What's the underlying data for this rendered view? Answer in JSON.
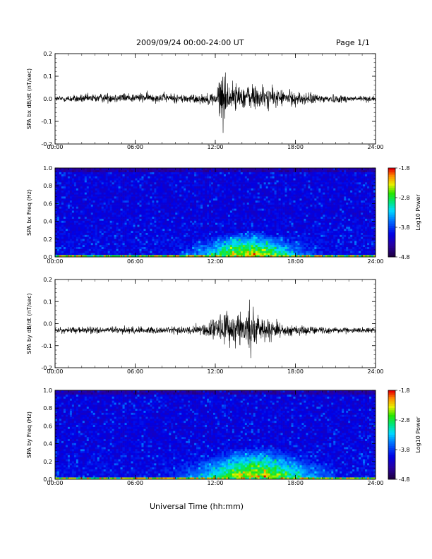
{
  "header": {
    "title": "2009/09/24  00:00-24:00 UT",
    "page": "Page 1/1"
  },
  "x_axis_label": "Universal Time (hh:mm)",
  "chart_data": [
    {
      "type": "line",
      "ylabel": "SPA bx dB/dt (nT/sec)",
      "xlim": [
        0,
        24
      ],
      "ylim": [
        -0.2,
        0.2
      ],
      "xticks": [
        "00:00",
        "06:00",
        "12:00",
        "18:00",
        "24:00"
      ],
      "yticks": [
        "0.2",
        "0.1",
        "0.0",
        "-0.1",
        "-0.2"
      ],
      "series": [
        {
          "x": [
            0,
            2,
            4,
            6,
            8,
            10,
            11,
            12,
            12.5,
            13,
            14,
            15,
            16,
            17,
            18,
            20,
            22,
            24
          ],
          "baseline": [
            0.0,
            0.0,
            0.005,
            0.005,
            0.005,
            0.0,
            0.0,
            0.0,
            0.005,
            0.01,
            0.01,
            0.005,
            0.005,
            0.005,
            0.0,
            0.0,
            0.0,
            0.0
          ],
          "amplitude": [
            0.012,
            0.018,
            0.02,
            0.02,
            0.02,
            0.02,
            0.02,
            0.03,
            0.13,
            0.06,
            0.05,
            0.06,
            0.045,
            0.035,
            0.03,
            0.02,
            0.015,
            0.012
          ]
        }
      ]
    },
    {
      "type": "heatmap",
      "ylabel": "SPA bx Freq (Hz)",
      "xlim": [
        0,
        24
      ],
      "ylim": [
        0.0,
        1.0
      ],
      "xticks": [
        "00:00",
        "06:00",
        "12:00",
        "18:00",
        "24:00"
      ],
      "yticks": [
        "1.0",
        "0.8",
        "0.6",
        "0.4",
        "0.2",
        "0.0"
      ],
      "colorbar": {
        "label": "Log10 Power",
        "range": [
          -4.8,
          -1.8
        ],
        "ticks": [
          "-1.8",
          "-2.8",
          "-3.8",
          "-4.8"
        ]
      },
      "features": [
        {
          "t": [
            9,
            20
          ],
          "peak_t": 14.5,
          "f_top": 0.3,
          "level": -2.9
        }
      ]
    },
    {
      "type": "line",
      "ylabel": "SPA by dB/dt (nT/sec)",
      "xlim": [
        0,
        24
      ],
      "ylim": [
        -0.2,
        0.2
      ],
      "xticks": [
        "00:00",
        "06:00",
        "12:00",
        "18:00",
        "24:00"
      ],
      "yticks": [
        "0.2",
        "0.1",
        "0.0",
        "-0.1",
        "-0.2"
      ],
      "series": [
        {
          "x": [
            0,
            2,
            4,
            6,
            8,
            10,
            11,
            12,
            13,
            14,
            14.5,
            15,
            16,
            17,
            18,
            20,
            22,
            24
          ],
          "baseline": [
            -0.03,
            -0.03,
            -0.03,
            -0.03,
            -0.03,
            -0.03,
            -0.03,
            -0.02,
            -0.02,
            -0.02,
            -0.02,
            -0.02,
            -0.025,
            -0.03,
            -0.03,
            -0.03,
            -0.03,
            -0.03
          ],
          "amplitude": [
            0.012,
            0.015,
            0.015,
            0.015,
            0.015,
            0.018,
            0.025,
            0.055,
            0.07,
            0.075,
            0.11,
            0.07,
            0.05,
            0.03,
            0.022,
            0.015,
            0.012,
            0.012
          ]
        }
      ]
    },
    {
      "type": "heatmap",
      "ylabel": "SPA by Freq (Hz)",
      "xlim": [
        0,
        24
      ],
      "ylim": [
        0.0,
        1.0
      ],
      "xticks": [
        "00:00",
        "06:00",
        "12:00",
        "18:00",
        "24:00"
      ],
      "yticks": [
        "1.0",
        "0.8",
        "0.6",
        "0.4",
        "0.2",
        "0.0"
      ],
      "colorbar": {
        "label": "Log10 Power",
        "range": [
          -4.8,
          -1.8
        ],
        "ticks": [
          "-1.8",
          "-2.8",
          "-3.8",
          "-4.8"
        ]
      },
      "features": [
        {
          "t": [
            8,
            21
          ],
          "peak_t": 15,
          "f_top": 0.38,
          "level": -2.8
        }
      ]
    }
  ]
}
